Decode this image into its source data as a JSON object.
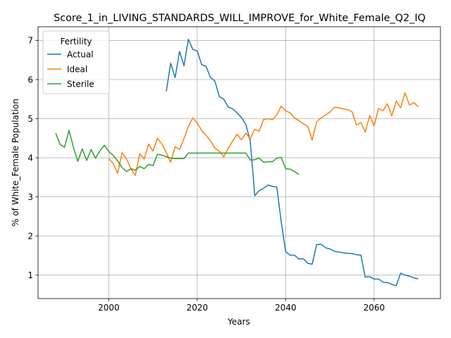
{
  "chart_data": {
    "type": "line",
    "title": "Score_1_in_LIVING_STANDARDS_WILL_IMPROVE_for_White_Female_Q2_IQ",
    "xlabel": "Years",
    "ylabel": "% of White_Female Population",
    "xlim": [
      1984,
      2075
    ],
    "ylim": [
      0.4,
      7.35
    ],
    "xticks": [
      2000,
      2020,
      2040,
      2060
    ],
    "yticks": [
      1,
      2,
      3,
      4,
      5,
      6,
      7
    ],
    "grid": true,
    "legend": {
      "title": "Fertility",
      "placement": "top-left"
    },
    "series": [
      {
        "name": "Actual",
        "color": "#1f77b4",
        "x": [
          2013,
          2014,
          2015,
          2016,
          2017,
          2018,
          2019,
          2020,
          2021,
          2022,
          2023,
          2024,
          2025,
          2026,
          2027,
          2028,
          2029,
          2030,
          2031,
          2032,
          2033,
          2034,
          2035,
          2036,
          2037,
          2038,
          2039,
          2040,
          2041,
          2042,
          2043,
          2044,
          2045,
          2046,
          2047,
          2048,
          2049,
          2050,
          2051,
          2052,
          2053,
          2054,
          2055,
          2056,
          2057,
          2058,
          2059,
          2060,
          2061,
          2062,
          2063,
          2064,
          2065,
          2066,
          2067,
          2068,
          2069,
          2070
        ],
        "y": [
          5.7,
          6.42,
          6.05,
          6.72,
          6.35,
          7.03,
          6.77,
          6.73,
          6.38,
          6.34,
          6.05,
          5.96,
          5.56,
          5.5,
          5.3,
          5.25,
          5.15,
          5.03,
          4.85,
          4.42,
          3.03,
          3.16,
          3.22,
          3.3,
          3.27,
          3.25,
          2.36,
          1.6,
          1.51,
          1.51,
          1.41,
          1.42,
          1.3,
          1.28,
          1.78,
          1.79,
          1.7,
          1.67,
          1.61,
          1.59,
          1.57,
          1.56,
          1.55,
          1.52,
          1.51,
          0.95,
          0.96,
          0.9,
          0.9,
          0.82,
          0.81,
          0.76,
          0.73,
          1.05,
          1.0,
          0.97,
          0.93,
          0.9
        ]
      },
      {
        "name": "Ideal",
        "color": "#ff7f0e",
        "x": [
          2000,
          2001,
          2002,
          2003,
          2004,
          2005,
          2006,
          2007,
          2008,
          2009,
          2010,
          2011,
          2012,
          2013,
          2014,
          2015,
          2016,
          2017,
          2018,
          2019,
          2020,
          2021,
          2022,
          2023,
          2024,
          2025,
          2026,
          2027,
          2028,
          2029,
          2030,
          2031,
          2032,
          2033,
          2034,
          2035,
          2036,
          2037,
          2038,
          2039,
          2040,
          2041,
          2042,
          2043,
          2044,
          2045,
          2046,
          2047,
          2048,
          2049,
          2050,
          2051,
          2052,
          2053,
          2054,
          2055,
          2056,
          2057,
          2058,
          2059,
          2060,
          2061,
          2062,
          2063,
          2064,
          2065,
          2066,
          2067,
          2068,
          2069,
          2070
        ],
        "y": [
          3.98,
          3.85,
          3.6,
          4.13,
          3.97,
          3.72,
          3.55,
          4.1,
          3.97,
          4.35,
          4.17,
          4.5,
          4.35,
          4.13,
          3.88,
          4.28,
          4.21,
          4.49,
          4.8,
          5.02,
          4.89,
          4.7,
          4.57,
          4.44,
          4.24,
          4.17,
          4.02,
          4.24,
          4.42,
          4.6,
          4.46,
          4.63,
          4.48,
          4.73,
          4.68,
          4.98,
          5.0,
          4.97,
          5.1,
          5.32,
          5.2,
          5.15,
          5.02,
          4.95,
          4.87,
          4.8,
          4.45,
          4.92,
          5.02,
          5.09,
          5.17,
          5.29,
          5.28,
          5.25,
          5.23,
          5.18,
          4.84,
          4.9,
          4.66,
          5.08,
          4.82,
          5.26,
          5.2,
          5.38,
          5.07,
          5.45,
          5.28,
          5.66,
          5.35,
          5.41,
          5.3
        ]
      },
      {
        "name": "Sterile",
        "color": "#2ca02c",
        "x": [
          1988,
          1989,
          1990,
          1991,
          1992,
          1993,
          1994,
          1995,
          1996,
          1997,
          1998,
          1999,
          2000,
          2001,
          2002,
          2003,
          2004,
          2005,
          2006,
          2007,
          2008,
          2009,
          2010,
          2011,
          2012,
          2013,
          2014,
          2015,
          2016,
          2017,
          2018,
          2019,
          2020,
          2021,
          2022,
          2023,
          2024,
          2025,
          2026,
          2027,
          2028,
          2029,
          2030,
          2031,
          2032,
          2033,
          2034,
          2035,
          2036,
          2037,
          2038,
          2039,
          2040,
          2041,
          2042,
          2043
        ],
        "y": [
          4.63,
          4.34,
          4.27,
          4.7,
          4.27,
          3.91,
          4.23,
          3.93,
          4.21,
          3.99,
          4.18,
          4.32,
          4.16,
          4.06,
          3.92,
          3.75,
          3.65,
          3.72,
          3.68,
          3.78,
          3.72,
          3.83,
          3.8,
          4.09,
          4.07,
          4.03,
          3.99,
          3.98,
          3.98,
          3.98,
          4.12,
          4.12,
          4.12,
          4.12,
          4.12,
          4.12,
          4.12,
          4.12,
          4.12,
          4.12,
          4.12,
          4.12,
          4.12,
          4.12,
          3.94,
          3.95,
          3.99,
          3.89,
          3.9,
          3.9,
          3.99,
          4.01,
          3.72,
          3.71,
          3.65,
          3.57
        ]
      }
    ]
  }
}
